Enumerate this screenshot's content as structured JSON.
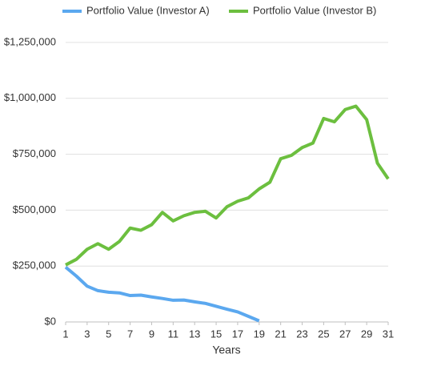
{
  "chart_data": {
    "type": "line",
    "x": [
      1,
      2,
      3,
      4,
      5,
      6,
      7,
      8,
      9,
      10,
      11,
      12,
      13,
      14,
      15,
      16,
      17,
      18,
      19,
      20,
      21,
      22,
      23,
      24,
      25,
      26,
      27,
      28,
      29,
      30,
      31
    ],
    "xlim": [
      1,
      31
    ],
    "xticks": [
      1,
      3,
      5,
      7,
      9,
      11,
      13,
      15,
      17,
      19,
      21,
      23,
      25,
      27,
      29,
      31
    ],
    "xlabel": "Years",
    "ylim": [
      0,
      1250000
    ],
    "yticks": [
      {
        "value": 0,
        "label": "$0"
      },
      {
        "value": 250000,
        "label": "$250,000"
      },
      {
        "value": 500000,
        "label": "$500,000"
      },
      {
        "value": 750000,
        "label": "$750,000"
      },
      {
        "value": 1000000,
        "label": "$1,000,000"
      },
      {
        "value": 1250000,
        "label": "$1,250,000"
      }
    ],
    "grid": true,
    "legend": "top",
    "series": [
      {
        "name": "Portfolio Value (Investor A)",
        "color": "#5ba8ef",
        "values": [
          245000,
          205000,
          160000,
          140000,
          133000,
          130000,
          118000,
          120000,
          112000,
          105000,
          97000,
          98000,
          90000,
          83000,
          70000,
          57000,
          45000,
          25000,
          5000,
          null,
          null,
          null,
          null,
          null,
          null,
          null,
          null,
          null,
          null,
          null,
          null
        ]
      },
      {
        "name": "Portfolio Value (Investor B)",
        "color": "#6cbf3f",
        "values": [
          255000,
          280000,
          325000,
          350000,
          325000,
          360000,
          420000,
          410000,
          435000,
          490000,
          452000,
          475000,
          490000,
          495000,
          465000,
          515000,
          540000,
          555000,
          595000,
          625000,
          730000,
          745000,
          780000,
          800000,
          910000,
          895000,
          950000,
          965000,
          905000,
          710000,
          640000
        ]
      }
    ]
  }
}
